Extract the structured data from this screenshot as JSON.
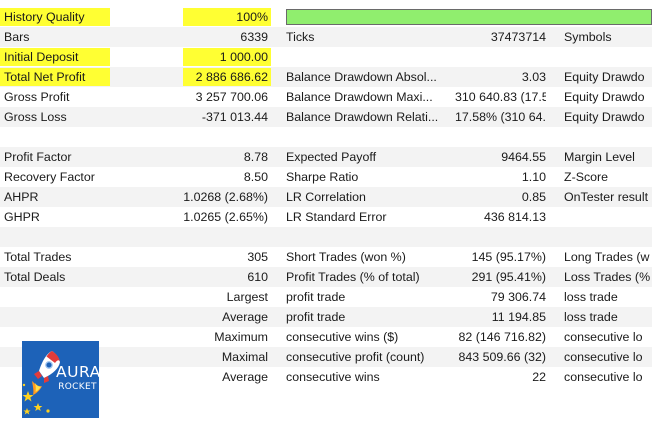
{
  "colors": {
    "highlight": "#ffff33",
    "quality_bar": "#90ee6e",
    "alternate_row": "#f3f3f3",
    "logo_background": "#1d62b8"
  },
  "history_quality_fill_percent": 100,
  "rows": [
    {
      "c1": "History Quality",
      "c1_hl": true,
      "c2": "100%",
      "c2_hl": true,
      "c3": "",
      "c4": "",
      "c5": "",
      "bar": true,
      "alt": false
    },
    {
      "c1": "Bars",
      "c2": "6339",
      "c3": "Ticks",
      "c4": "37473714",
      "c5": "Symbols",
      "alt": true
    },
    {
      "c1": "Initial Deposit",
      "c1_hl": true,
      "c2": "1 000.00",
      "c2_hl": true,
      "c3": "",
      "c4": "",
      "c5": "",
      "alt": false
    },
    {
      "c1": "Total Net Profit",
      "c1_hl": true,
      "c2": "2 886 686.62",
      "c2_hl": true,
      "c3": "Balance Drawdown Absol...",
      "c4": "3.03",
      "c5": "Equity Drawdo",
      "alt": true
    },
    {
      "c1": "Gross Profit",
      "c2": "3 257 700.06",
      "c3": "Balance Drawdown Maxi...",
      "c4": "310 640.83 (17.5...",
      "c5": "Equity Drawdo",
      "alt": false
    },
    {
      "c1": "Gross Loss",
      "c2": "-371 013.44",
      "c3": "Balance Drawdown Relati...",
      "c4": "17.58% (310 64...",
      "c5": "Equity Drawdo",
      "alt": true
    },
    {
      "c1": "",
      "c2": "",
      "c3": "",
      "c4": "",
      "c5": "",
      "alt": false
    },
    {
      "c1": "Profit Factor",
      "c2": "8.78",
      "c3": "Expected Payoff",
      "c4": "9464.55",
      "c5": "Margin Level",
      "alt": true
    },
    {
      "c1": "Recovery Factor",
      "c2": "8.50",
      "c3": "Sharpe Ratio",
      "c4": "1.10",
      "c5": "Z-Score",
      "alt": false
    },
    {
      "c1": "AHPR",
      "c2": "1.0268 (2.68%)",
      "c3": "LR Correlation",
      "c4": "0.85",
      "c5": "OnTester result",
      "alt": true
    },
    {
      "c1": "GHPR",
      "c2": "1.0265 (2.65%)",
      "c3": "LR Standard Error",
      "c4": "436 814.13",
      "c5": "",
      "alt": false
    },
    {
      "c1": "",
      "c2": "",
      "c3": "",
      "c4": "",
      "c5": "",
      "alt": true
    },
    {
      "c1": "Total Trades",
      "c2": "305",
      "c3": "Short Trades (won %)",
      "c4": "145 (95.17%)",
      "c5": "Long Trades (w",
      "alt": false
    },
    {
      "c1": "Total Deals",
      "c2": "610",
      "c3": "Profit Trades (% of total)",
      "c4": "291 (95.41%)",
      "c5": "Loss Trades (%",
      "alt": true
    },
    {
      "c1": "",
      "c2": "Largest",
      "c3": "profit trade",
      "c4": "79 306.74",
      "c5": "loss trade",
      "alt": false
    },
    {
      "c1": "",
      "c2": "Average",
      "c3": "profit trade",
      "c4": "11 194.85",
      "c5": "loss trade",
      "alt": true
    },
    {
      "c1": "",
      "c2": "Maximum",
      "c3": "consecutive wins ($)",
      "c4": "82 (146 716.82)",
      "c5": "consecutive lo",
      "alt": false
    },
    {
      "c1": "",
      "c2": "Maximal",
      "c3": "consecutive profit (count)",
      "c4": "843 509.66 (32)",
      "c5": "consecutive lo",
      "alt": true
    },
    {
      "c1": "",
      "c2": "Average",
      "c3": "consecutive wins",
      "c4": "22",
      "c5": "consecutive lo",
      "alt": false
    }
  ],
  "logo": {
    "word1": "AURA",
    "word2": "ROCKET",
    "icon": "rocket-icon"
  }
}
